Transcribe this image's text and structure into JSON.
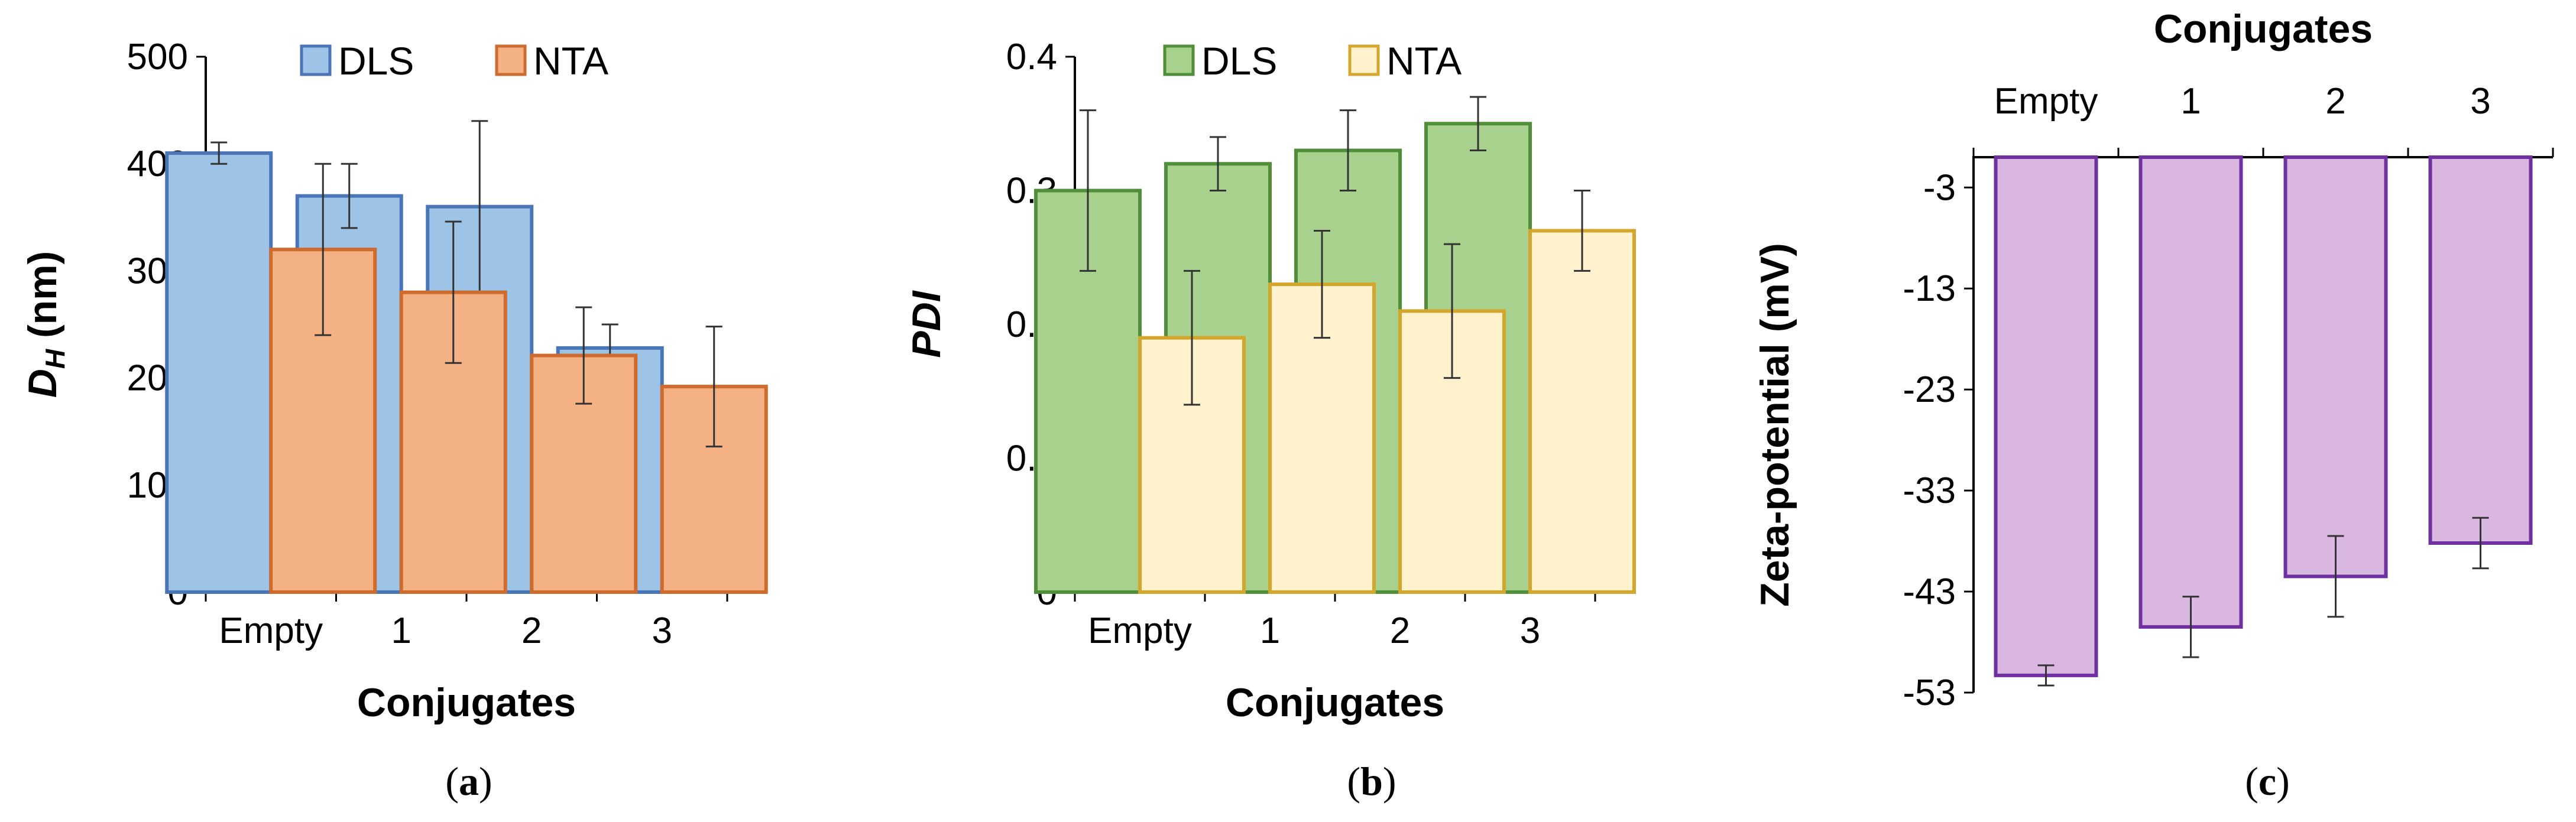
{
  "chart_data": [
    {
      "type": "bar",
      "title": "",
      "caption": "a",
      "categories": [
        "Empty",
        "1",
        "2",
        "3"
      ],
      "xlabel": "Conjugates",
      "ylabel": "D",
      "ylabel_sub": "H",
      "ylabel_rest": " (nm)",
      "ylim": [
        0,
        500
      ],
      "yticks": [
        "0",
        "100",
        "200",
        "300",
        "400",
        "500"
      ],
      "grid": false,
      "legend": "top",
      "series": [
        {
          "name": "DLS",
          "values": [
            410,
            370,
            360,
            228
          ],
          "errors": [
            10,
            30,
            80,
            22
          ],
          "color": "#9dc3e6",
          "edge": "#4a76b8"
        },
        {
          "name": "NTA",
          "values": [
            320,
            280,
            221,
            192
          ],
          "errors": [
            80,
            66,
            45,
            56
          ],
          "color": "#f4b183",
          "edge": "#d06b2e"
        }
      ]
    },
    {
      "type": "bar",
      "title": "",
      "caption": "b",
      "categories": [
        "Empty",
        "1",
        "2",
        "3"
      ],
      "xlabel": "Conjugates",
      "ylabel": "PDI",
      "ylim": [
        0,
        0.4
      ],
      "yticks": [
        "0",
        "0.1",
        "0.2",
        "0.3",
        "0.4"
      ],
      "grid": false,
      "legend": "top",
      "series": [
        {
          "name": "DLS",
          "values": [
            0.3,
            0.32,
            0.33,
            0.35
          ],
          "errors": [
            0.06,
            0.02,
            0.03,
            0.02
          ],
          "color": "#a9d18e",
          "edge": "#4f8f3a"
        },
        {
          "name": "NTA",
          "values": [
            0.19,
            0.23,
            0.21,
            0.27
          ],
          "errors": [
            0.05,
            0.04,
            0.05,
            0.03
          ],
          "color": "#fff2cc",
          "edge": "#d4a72c"
        }
      ]
    },
    {
      "type": "bar",
      "title": "",
      "caption": "c",
      "categories": [
        "Empty",
        "1",
        "2",
        "3"
      ],
      "xlabel": "Conjugates",
      "xaxis_position": "top",
      "ylabel": "Zeta-potential (mV)",
      "ylim": [
        -53,
        0
      ],
      "yticks": [
        "-3",
        "-13",
        "-23",
        "-33",
        "-43",
        "-53"
      ],
      "grid": false,
      "legend": "none",
      "series": [
        {
          "values": [
            -51.3,
            -46.5,
            -41.5,
            -38.2
          ],
          "errors": [
            1.0,
            3.0,
            4.0,
            2.5
          ],
          "color": "#d9b7e0",
          "edge": "#7030a0"
        }
      ]
    }
  ]
}
